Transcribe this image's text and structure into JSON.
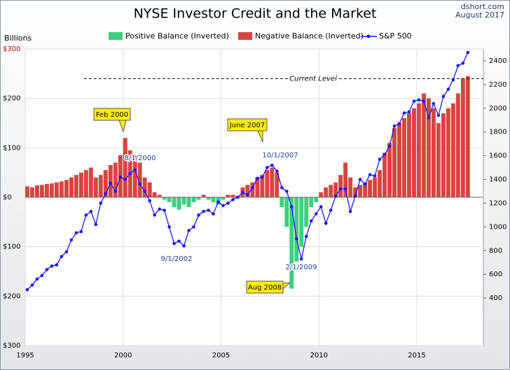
{
  "chart_data": {
    "type": "bar-line",
    "title": "NYSE Investor Credit and the Market",
    "source": "dshort.com",
    "date": "August 2017",
    "y_label": "Billions",
    "x": [
      1995,
      1995.25,
      1995.5,
      1995.75,
      1996,
      1996.25,
      1996.5,
      1996.75,
      1997,
      1997.25,
      1997.5,
      1997.75,
      1998,
      1998.25,
      1998.5,
      1998.75,
      1999,
      1999.25,
      1999.5,
      1999.75,
      2000,
      2000.25,
      2000.5,
      2000.75,
      2001,
      2001.25,
      2001.5,
      2001.75,
      2002,
      2002.25,
      2002.5,
      2002.75,
      2003,
      2003.25,
      2003.5,
      2003.75,
      2004,
      2004.25,
      2004.5,
      2004.75,
      2005,
      2005.25,
      2005.5,
      2005.75,
      2006,
      2006.25,
      2006.5,
      2006.75,
      2007,
      2007.25,
      2007.5,
      2007.75,
      2008,
      2008.25,
      2008.5,
      2008.75,
      2009,
      2009.25,
      2009.5,
      2009.75,
      2010,
      2010.25,
      2010.5,
      2010.75,
      2011,
      2011.25,
      2011.5,
      2011.75,
      2012,
      2012.25,
      2012.5,
      2012.75,
      2013,
      2013.25,
      2013.5,
      2013.75,
      2014,
      2014.25,
      2014.5,
      2014.75,
      2015,
      2015.25,
      2015.5,
      2015.75,
      2016,
      2016.25,
      2016.5,
      2016.75,
      2017,
      2017.25,
      2017.5
    ],
    "series": [
      {
        "name": "Positive Balance (Inverted)",
        "color": "#3ecf7e",
        "values": [
          null,
          null,
          null,
          null,
          null,
          null,
          null,
          null,
          null,
          null,
          null,
          null,
          null,
          null,
          null,
          null,
          null,
          null,
          null,
          null,
          null,
          null,
          null,
          null,
          null,
          null,
          null,
          null,
          -5,
          -10,
          -20,
          -25,
          -15,
          -20,
          -10,
          -5,
          null,
          -5,
          -10,
          -15,
          -5,
          null,
          null,
          null,
          null,
          null,
          null,
          null,
          null,
          null,
          null,
          null,
          -20,
          -60,
          -185,
          -130,
          -100,
          -60,
          -20,
          -10,
          null,
          null,
          null,
          null,
          null,
          null,
          null,
          null,
          null,
          null,
          null,
          null,
          null,
          null,
          null,
          null,
          null,
          null,
          null,
          null,
          null,
          null,
          null,
          null,
          null,
          null,
          null,
          null,
          null,
          null,
          null
        ]
      },
      {
        "name": "Negative Balance (Inverted)",
        "color": "#d64541",
        "values": [
          22,
          20,
          24,
          25,
          27,
          28,
          30,
          32,
          35,
          40,
          45,
          50,
          55,
          60,
          40,
          45,
          55,
          65,
          70,
          85,
          120,
          95,
          85,
          70,
          40,
          30,
          10,
          5,
          null,
          null,
          null,
          null,
          null,
          null,
          null,
          null,
          5,
          null,
          null,
          null,
          null,
          5,
          5,
          3,
          20,
          25,
          30,
          40,
          45,
          55,
          60,
          50,
          null,
          null,
          null,
          null,
          null,
          null,
          null,
          null,
          10,
          20,
          25,
          30,
          45,
          70,
          40,
          20,
          25,
          30,
          35,
          40,
          55,
          90,
          110,
          140,
          150,
          160,
          170,
          180,
          190,
          210,
          200,
          180,
          150,
          170,
          180,
          190,
          210,
          240,
          245
        ]
      },
      {
        "name": "S&P 500",
        "color": "#1a1aff",
        "axis": "y2",
        "values": [
          470,
          510,
          560,
          590,
          640,
          670,
          680,
          750,
          790,
          890,
          950,
          960,
          1100,
          1130,
          1020,
          1200,
          1280,
          1370,
          1300,
          1420,
          1400,
          1450,
          1480,
          1360,
          1300,
          1220,
          1100,
          1150,
          1140,
          1000,
          860,
          880,
          840,
          970,
          1000,
          1100,
          1130,
          1140,
          1110,
          1210,
          1180,
          1200,
          1230,
          1250,
          1290,
          1270,
          1330,
          1410,
          1420,
          1500,
          1520,
          1470,
          1330,
          1300,
          1170,
          900,
          730,
          920,
          1050,
          1110,
          1170,
          1030,
          1140,
          1260,
          1320,
          1320,
          1130,
          1260,
          1400,
          1360,
          1440,
          1430,
          1570,
          1610,
          1680,
          1850,
          1870,
          1960,
          1970,
          2060,
          2070,
          2060,
          1920,
          2040,
          1940,
          2100,
          2160,
          2240,
          2360,
          2380,
          2470
        ]
      }
    ],
    "xlim": [
      1995,
      2018.4
    ],
    "xticks": [
      1995,
      2000,
      2005,
      2010,
      2015
    ],
    "ylim": [
      -300,
      300
    ],
    "yticks": [
      {
        "value": -300,
        "label": "$300"
      },
      {
        "value": -200,
        "label": "$200"
      },
      {
        "value": -100,
        "label": "$100"
      },
      {
        "value": 0,
        "label": "$0"
      },
      {
        "value": 100,
        "label": "$100"
      },
      {
        "value": 200,
        "label": "$200"
      },
      {
        "value": 300,
        "label": "$300"
      }
    ],
    "y2lim": [
      0,
      2500
    ],
    "y2ticks": [
      400,
      600,
      800,
      1000,
      1200,
      1400,
      1600,
      1800,
      2000,
      2200,
      2400
    ],
    "grid": true,
    "current_level": {
      "text": "Current Level",
      "value": 240
    },
    "callouts": [
      "Feb 2000",
      "June 2007",
      "Aug 2008"
    ],
    "point_labels": [
      "8/1/2000",
      "10/1/2007",
      "9/1/2002",
      "2/1/2009"
    ]
  }
}
